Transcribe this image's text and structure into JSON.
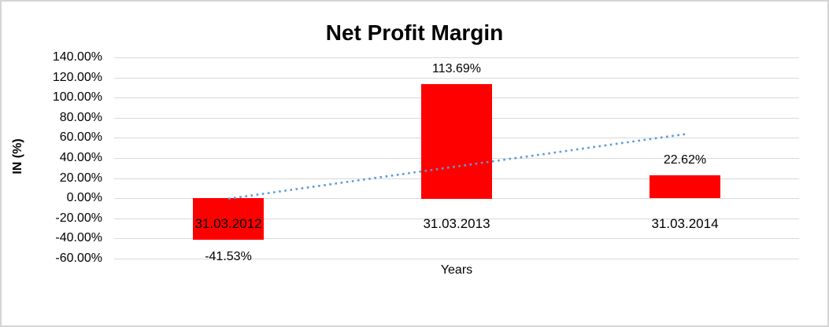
{
  "chart_data": {
    "type": "bar",
    "title": "Net Profit Margin",
    "xlabel": "Years",
    "ylabel": "IN (%)",
    "categories": [
      "31.03.2012",
      "31.03.2013",
      "31.03.2014"
    ],
    "values": [
      -41.53,
      113.69,
      22.62
    ],
    "data_labels": [
      "-41.53%",
      "113.69%",
      "22.62%"
    ],
    "yticks": [
      "140.00%",
      "120.00%",
      "100.00%",
      "80.00%",
      "60.00%",
      "40.00%",
      "20.00%",
      "0.00%",
      "-20.00%",
      "-40.00%",
      "-60.00%"
    ],
    "ytick_values": [
      140,
      120,
      100,
      80,
      60,
      40,
      20,
      0,
      -20,
      -40,
      -60
    ],
    "ylim": [
      -60,
      140
    ],
    "grid": true,
    "legend": "none",
    "bar_color": "#FF0000",
    "text_color": "#000000",
    "gridline_color": "#d9d9d9",
    "trendline": {
      "type": "linear",
      "style": "dotted",
      "color": "#5B9BD5",
      "start_value": -0.5,
      "end_value": 63.7
    }
  }
}
